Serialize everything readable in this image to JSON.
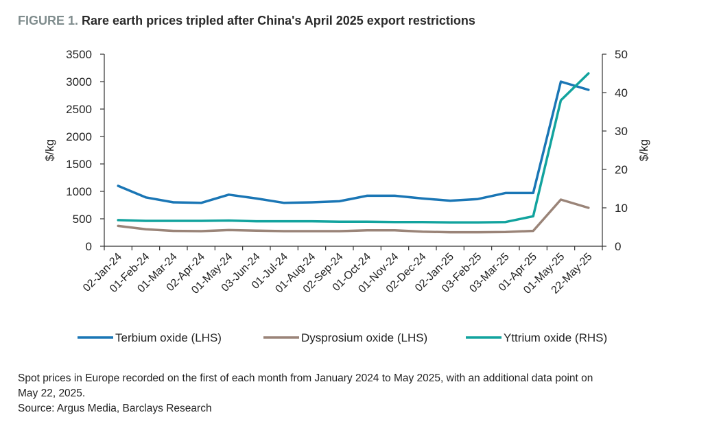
{
  "figure": {
    "label": "FIGURE 1.",
    "title": "Rare earth prices tripled after China's April 2025 export restrictions"
  },
  "chart_data": {
    "type": "line",
    "categories": [
      "02-Jan-24",
      "01-Feb-24",
      "01-Mar-24",
      "02-Apr-24",
      "01-May-24",
      "03-Jun-24",
      "01-Jul-24",
      "01-Aug-24",
      "02-Sep-24",
      "01-Oct-24",
      "01-Nov-24",
      "02-Dec-24",
      "02-Jan-25",
      "03-Feb-25",
      "03-Mar-25",
      "01-Apr-25",
      "01-May-25",
      "22-May-25"
    ],
    "y_left": {
      "label": "$/kg",
      "lim": [
        0,
        3500
      ],
      "ticks": [
        0,
        500,
        1000,
        1500,
        2000,
        2500,
        3000,
        3500
      ]
    },
    "y_right": {
      "label": "$/kg",
      "lim": [
        0,
        50
      ],
      "ticks": [
        0,
        10,
        20,
        30,
        40,
        50
      ]
    },
    "grid": false,
    "legend_position": "bottom",
    "series": [
      {
        "name": "Terbium oxide (LHS)",
        "axis": "left",
        "color": "#1a76b5",
        "values": [
          1100,
          890,
          800,
          790,
          940,
          870,
          790,
          800,
          820,
          920,
          920,
          870,
          830,
          860,
          970,
          970,
          3000,
          2850
        ]
      },
      {
        "name": "Dysprosium oxide (LHS)",
        "axis": "left",
        "color": "#9a8478",
        "values": [
          370,
          310,
          280,
          275,
          295,
          285,
          275,
          275,
          275,
          290,
          290,
          265,
          255,
          255,
          260,
          280,
          850,
          700
        ]
      },
      {
        "name": "Yttrium oxide (RHS)",
        "axis": "right",
        "color": "#12a39e",
        "values": [
          6.8,
          6.6,
          6.6,
          6.6,
          6.7,
          6.5,
          6.5,
          6.5,
          6.4,
          6.4,
          6.3,
          6.3,
          6.2,
          6.2,
          6.3,
          7.8,
          38,
          45
        ]
      }
    ]
  },
  "notes": {
    "line1": "Spot prices in Europe recorded on the first of each month from January 2024 to May 2025, with an additional data point on",
    "line2": "May 22, 2025.",
    "source": "Source: Argus Media, Barclays Research"
  }
}
